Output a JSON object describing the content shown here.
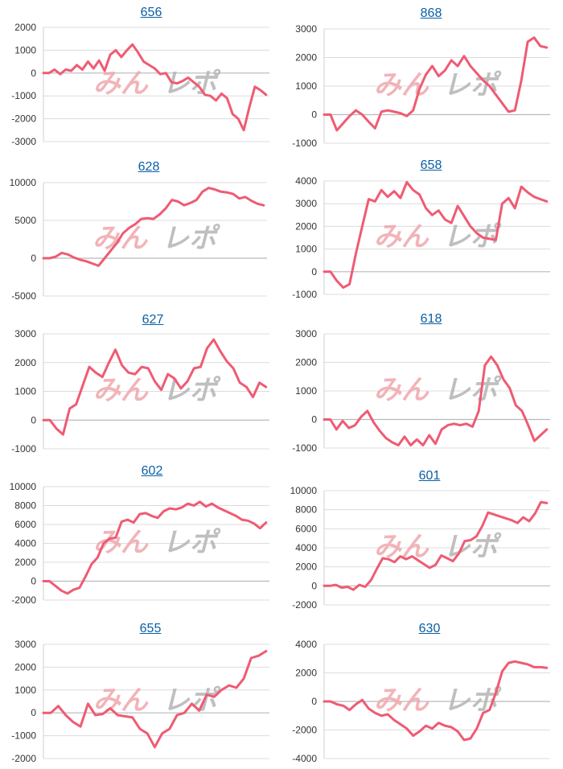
{
  "colors": {
    "line": "#ef5b73",
    "grid": "#dcdcdc",
    "zero": "#b9b9b9",
    "axis": "#cfcfcf",
    "link": "#0b5fa5",
    "watermark_pink": "#efa7ad",
    "watermark_gray": "#b5b5b5"
  },
  "watermark": "みんレポ",
  "chart_data": [
    {
      "type": "line",
      "title": "656",
      "yticks": [
        2000,
        1000,
        0,
        -1000,
        -2000,
        -3000
      ],
      "ylim": [
        -3000,
        2000
      ],
      "values": [
        0,
        0,
        150,
        -50,
        150,
        100,
        350,
        150,
        500,
        200,
        550,
        100,
        800,
        1000,
        700,
        1000,
        1250,
        900,
        500,
        350,
        200,
        -50,
        0,
        -400,
        -450,
        -350,
        -200,
        -400,
        -600,
        -950,
        -1000,
        -1200,
        -900,
        -1100,
        -1800,
        -2000,
        -2500,
        -1500,
        -600,
        -750,
        -950
      ]
    },
    {
      "type": "line",
      "title": "868",
      "yticks": [
        3000,
        2000,
        1000,
        0,
        -1000
      ],
      "ylim": [
        -1000,
        3000
      ],
      "values": [
        0,
        0,
        -550,
        -300,
        -50,
        150,
        0,
        -250,
        -480,
        100,
        150,
        100,
        50,
        -50,
        150,
        900,
        1400,
        1700,
        1350,
        1550,
        1900,
        1700,
        2050,
        1700,
        1450,
        1200,
        1000,
        700,
        400,
        100,
        150,
        1200,
        2550,
        2700,
        2400,
        2350
      ]
    },
    {
      "type": "line",
      "title": "628",
      "yticks": [
        10000,
        5000,
        0,
        -5000
      ],
      "ylim": [
        -5000,
        10000
      ],
      "values": [
        0,
        0,
        200,
        700,
        500,
        100,
        -200,
        -400,
        -700,
        -1000,
        0,
        1000,
        2000,
        3300,
        4000,
        4500,
        5200,
        5300,
        5200,
        5800,
        6600,
        7700,
        7500,
        7000,
        7300,
        7700,
        8800,
        9300,
        9100,
        8800,
        8700,
        8500,
        7900,
        8100,
        7600,
        7200,
        7000
      ]
    },
    {
      "type": "line",
      "title": "658",
      "yticks": [
        4000,
        3000,
        2000,
        1000,
        0,
        -1000
      ],
      "ylim": [
        -1000,
        4000
      ],
      "values": [
        0,
        0,
        -400,
        -700,
        -550,
        800,
        2000,
        3200,
        3100,
        3600,
        3300,
        3550,
        3250,
        3950,
        3600,
        3400,
        2800,
        2500,
        2700,
        2300,
        2150,
        2900,
        2450,
        2000,
        1700,
        1500,
        1450,
        1400,
        3000,
        3250,
        2800,
        3750,
        3500,
        3300,
        3200,
        3100
      ]
    },
    {
      "type": "line",
      "title": "627",
      "yticks": [
        3000,
        2000,
        1000,
        0,
        -1000
      ],
      "ylim": [
        -1000,
        3000
      ],
      "values": [
        0,
        0,
        -300,
        -500,
        400,
        550,
        1200,
        1850,
        1650,
        1500,
        2000,
        2450,
        1900,
        1650,
        1600,
        1850,
        1800,
        1350,
        1050,
        1600,
        1450,
        1100,
        1350,
        1800,
        1850,
        2500,
        2800,
        2400,
        2050,
        1800,
        1300,
        1150,
        800,
        1300,
        1150
      ]
    },
    {
      "type": "line",
      "title": "618",
      "yticks": [
        3000,
        2000,
        1000,
        0,
        -1000
      ],
      "ylim": [
        -1000,
        3000
      ],
      "values": [
        0,
        0,
        -350,
        -50,
        -300,
        -200,
        100,
        300,
        -100,
        -400,
        -650,
        -800,
        -900,
        -600,
        -900,
        -700,
        -900,
        -550,
        -850,
        -350,
        -200,
        -150,
        -200,
        -150,
        -250,
        300,
        1900,
        2200,
        1900,
        1400,
        1100,
        500,
        300,
        -200,
        -750,
        -550,
        -350
      ]
    },
    {
      "type": "line",
      "title": "602",
      "yticks": [
        10000,
        8000,
        6000,
        4000,
        2000,
        0,
        -2000
      ],
      "ylim": [
        -2000,
        10000
      ],
      "values": [
        0,
        0,
        -500,
        -1000,
        -1300,
        -900,
        -700,
        500,
        1800,
        2500,
        4000,
        4500,
        4600,
        6300,
        6500,
        6200,
        7100,
        7200,
        6900,
        6700,
        7400,
        7700,
        7600,
        7800,
        8200,
        8000,
        8400,
        7900,
        8200,
        7800,
        7500,
        7200,
        6900,
        6500,
        6400,
        6100,
        5600,
        6200
      ]
    },
    {
      "type": "line",
      "title": "601",
      "yticks": [
        10000,
        8000,
        6000,
        4000,
        2000,
        0,
        -2000
      ],
      "ylim": [
        -2000,
        10000
      ],
      "values": [
        0,
        0,
        100,
        -200,
        -100,
        -400,
        100,
        -100,
        600,
        1800,
        2900,
        2800,
        2500,
        3100,
        2800,
        3100,
        2700,
        2300,
        1900,
        2200,
        3200,
        2900,
        2600,
        3400,
        4700,
        4800,
        5200,
        6300,
        7700,
        7500,
        7300,
        7100,
        6900,
        6600,
        7200,
        6800,
        7600,
        8800,
        8700
      ]
    },
    {
      "type": "line",
      "title": "655",
      "yticks": [
        3000,
        2000,
        1000,
        0,
        -1000,
        -2000
      ],
      "ylim": [
        -2000,
        3000
      ],
      "values": [
        0,
        0,
        300,
        -100,
        -400,
        -600,
        400,
        -100,
        -50,
        200,
        -100,
        -150,
        -200,
        -700,
        -900,
        -1500,
        -900,
        -700,
        -100,
        0,
        400,
        100,
        800,
        700,
        1000,
        1200,
        1100,
        1500,
        2400,
        2500,
        2700
      ]
    },
    {
      "type": "line",
      "title": "630",
      "yticks": [
        4000,
        2000,
        0,
        -2000,
        -4000
      ],
      "ylim": [
        -4000,
        4000
      ],
      "values": [
        0,
        0,
        -200,
        -300,
        -600,
        -200,
        100,
        -500,
        -800,
        -1000,
        -900,
        -1300,
        -1600,
        -1900,
        -2400,
        -2100,
        -1700,
        -1900,
        -1500,
        -1700,
        -1800,
        -2100,
        -2700,
        -2600,
        -1900,
        -800,
        -600,
        600,
        2100,
        2700,
        2800,
        2700,
        2600,
        2400,
        2400,
        2350
      ]
    }
  ]
}
